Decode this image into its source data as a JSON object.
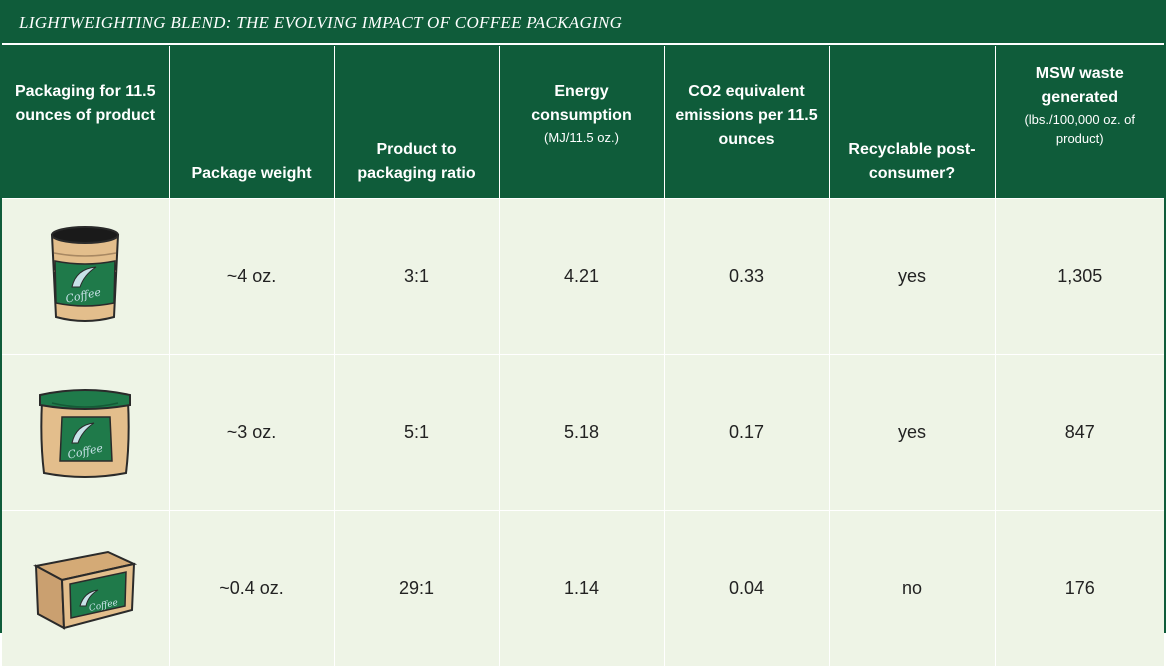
{
  "title": "LIGHTWEIGHTING BLEND: THE EVOLVING IMPACT OF COFFEE PACKAGING",
  "headers": {
    "packaging": "Packaging for 11.5 ounces of product",
    "weight": "Package weight",
    "ratio": "Product to packaging ratio",
    "energy": "Energy consumption",
    "energy_sub": "(MJ/11.5 oz.)",
    "co2": "CO2 equivalent emissions per 11.5 ounces",
    "recyclable": "Recyclable post-consumer?",
    "msw": "MSW waste generated",
    "msw_sub": "(lbs./100,000 oz. of product)"
  },
  "rows": [
    {
      "icon": "coffee-can-icon",
      "label": "Coffee",
      "weight": "~4 oz.",
      "ratio": "3:1",
      "energy": "4.21",
      "co2": "0.33",
      "recyclable": "yes",
      "msw": "1,305"
    },
    {
      "icon": "coffee-plastic-container-icon",
      "label": "Coffee",
      "weight": "~3 oz.",
      "ratio": "5:1",
      "energy": "5.18",
      "co2": "0.17",
      "recyclable": "yes",
      "msw": "847"
    },
    {
      "icon": "coffee-pouch-box-icon",
      "label": "Coffee",
      "weight": "~0.4 oz.",
      "ratio": "29:1",
      "energy": "1.14",
      "co2": "0.04",
      "recyclable": "no",
      "msw": "176"
    }
  ],
  "colors": {
    "header_green": "#0f5c3a",
    "cell_background": "#eef4e6",
    "package_tan": "#e3be8c",
    "package_green": "#1f7a4a"
  }
}
